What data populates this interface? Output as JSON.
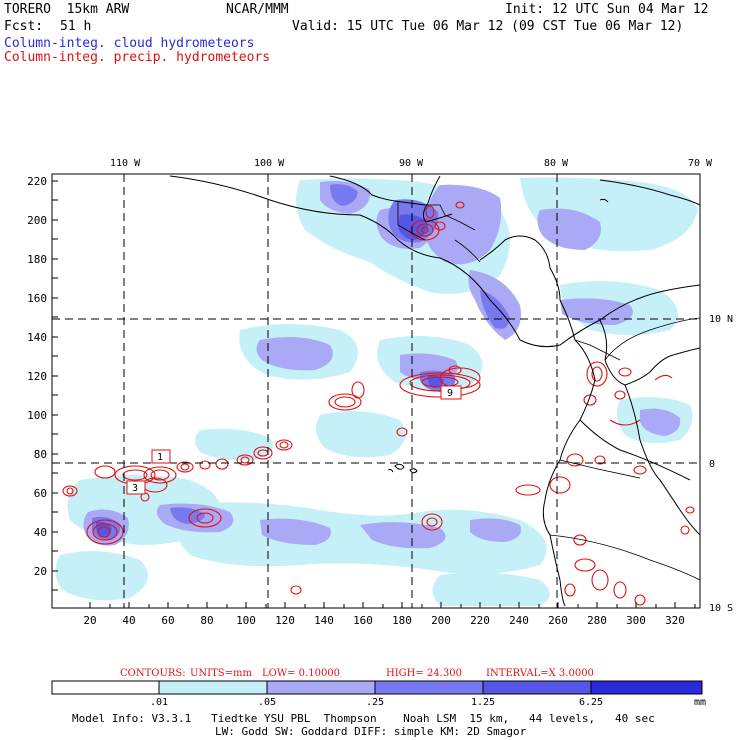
{
  "header": {
    "model": "TORERO  15km ARW",
    "org": "NCAR/MMM",
    "init": "Init: 12 UTC Sun 04 Mar 12",
    "fcst_label": "Fcst:",
    "fcst_value": "51 h",
    "valid": "Valid: 15 UTC Tue 06 Mar 12 (09 CST Tue 06 Mar 12)",
    "field1": "Column-integ. cloud hydrometeors",
    "field2": "Column-integ. precip. hydrometeors"
  },
  "colors": {
    "cloud_light": "#c6f0f8",
    "cloud_mid1": "#a9a9f5",
    "cloud_mid2": "#7878ef",
    "cloud_dark1": "#5555e6",
    "cloud_dark2": "#2a2adc",
    "precip_contour": "#e01010",
    "field1_text": "#2a2adc",
    "field2_text": "#e01010"
  },
  "axes": {
    "lon_labels": [
      "110 W",
      "100 W",
      "90 W",
      "80 W",
      "70 W"
    ],
    "lat_labels": [
      "10 N",
      "0",
      "10 S"
    ],
    "y_ticks": [
      "220",
      "200",
      "180",
      "160",
      "140",
      "120",
      "100",
      "80",
      "60",
      "40",
      "20"
    ],
    "x_ticks": [
      "20",
      "40",
      "60",
      "80",
      "100",
      "120",
      "140",
      "160",
      "180",
      "200",
      "220",
      "240",
      "260",
      "280",
      "300",
      "320"
    ]
  },
  "contour_labels": [
    "1",
    "3",
    "9"
  ],
  "contours_info": {
    "prefix": "CONTOURS:",
    "units": "UNITS=mm",
    "low": "LOW= 0.10000",
    "high": "HIGH=  24.300",
    "interval": "INTERVAL=X  3.0000"
  },
  "colorbar": {
    "labels": [
      ".01",
      ".05",
      ".25",
      "1.25",
      "6.25"
    ],
    "unit": "mm"
  },
  "footer": {
    "line1": "Model Info: V3.3.1   Tiedtke YSU PBL  Thompson    Noah LSM  15 km,   44 levels,   40 sec",
    "line2": "LW: Godd SW: Goddard DIFF: simple KM: 2D Smagor"
  }
}
